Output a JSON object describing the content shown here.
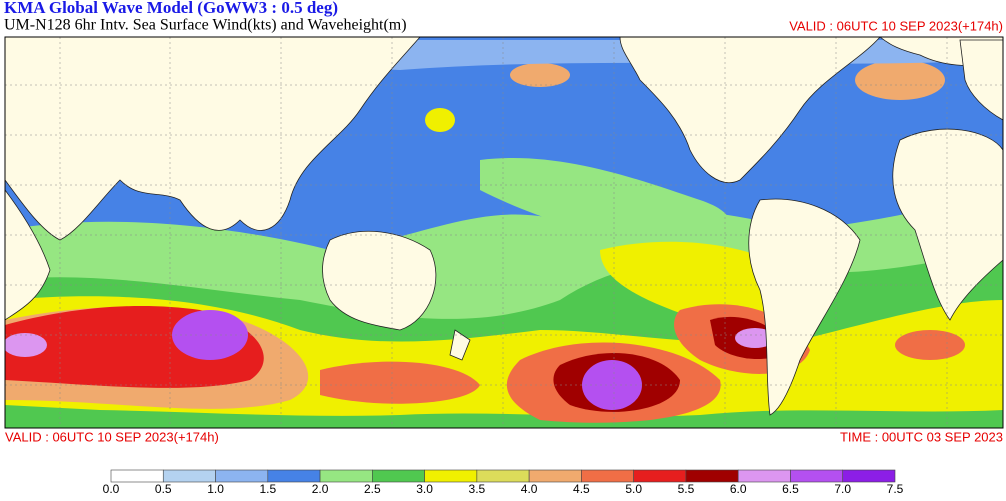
{
  "header": {
    "title": "KMA  Global Wave Model (GoWW3 : 0.5 deg)",
    "subtitle": "UM-N128  6hr Intv. Sea Surface Wind(kts) and Waveheight(m)",
    "valid": "VALID : 06UTC 10 SEP 2023(+174h)"
  },
  "footer": {
    "valid": "VALID : 06UTC 10 SEP 2023(+174h)",
    "time": "TIME : 00UTC 03 SEP 2023"
  },
  "colorbar": {
    "labels": [
      "0.0",
      "0.5",
      "1.0",
      "1.5",
      "2.0",
      "2.5",
      "3.0",
      "3.5",
      "4.0",
      "4.5",
      "5.0",
      "5.5",
      "6.0",
      "6.5",
      "7.0",
      "7.5"
    ],
    "colors": [
      "#ffffff",
      "#b4d2f0",
      "#8cb4f0",
      "#4682e6",
      "#96e682",
      "#50c850",
      "#f0f000",
      "#dcdc5a",
      "#f0aa6e",
      "#f06e46",
      "#e61e1e",
      "#a00000",
      "#dc96f0",
      "#b450f0",
      "#8c1ee6"
    ]
  }
}
